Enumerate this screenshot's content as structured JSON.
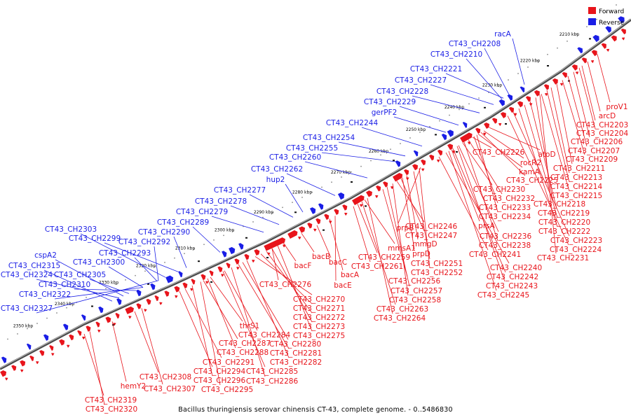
{
  "colors": {
    "forward": "#e8141b",
    "reverse": "#1a1ee6",
    "backbone": "#6e6e6e",
    "tick_dot": "#a0a0a0",
    "text": "#000000"
  },
  "legend": {
    "forward": "Forward",
    "reverse": "Reverse"
  },
  "caption": "Bacillus thuringiensis serovar chinensis CT-43, complete genome. - 0..5486830",
  "ticks": [
    "2210 kbp",
    "2220 kbp",
    "2230 kbp",
    "2240 kbp",
    "2250 kbp",
    "2260 kbp",
    "2270 kbp",
    "2280 kbp",
    "2290 kbp",
    "2300 kbp",
    "2310 kbp",
    "2320 kbp",
    "2330 kbp",
    "2340 kbp",
    "2350 kbp"
  ],
  "reverse_labels": [
    "racA",
    "CT43_CH2208",
    "CT43_CH2210",
    "CT43_CH2221",
    "CT43_CH2227",
    "CT43_CH2228",
    "CT43_CH2229",
    "gerPF2",
    "CT43_CH2244",
    "CT43_CH2254",
    "CT43_CH2255",
    "CT43_CH2260",
    "CT43_CH2262",
    "hup2",
    "CT43_CH2277",
    "CT43_CH2278",
    "CT43_CH2279",
    "CT43_CH2289",
    "CT43_CH2290",
    "CT43_CH2292",
    "CT43_CH2303",
    "CT43_CH2299",
    "CT43_CH2293",
    "CT43_CH2300",
    "cspA2",
    "CT43_CH2315",
    "CT43_CH2324",
    "CT43_CH2305",
    "CT43_CH2310",
    "CT43_CH2322",
    "CT43_CH2327"
  ],
  "forward_labels": [
    "proV1",
    "arcD",
    "CT43_CH2203",
    "CT43_CH2204",
    "CT43_CH2206",
    "CT43_CH2207",
    "CT43_CH2209",
    "CT43_CH2211",
    "CT43_CH2213",
    "CT43_CH2214",
    "CT43_CH2215",
    "CT43_CH2218",
    "CT43_CH2219",
    "CT43_CH2220",
    "CT43_CH2222",
    "CT43_CH2223",
    "CT43_CH2224",
    "CT43_CH2226",
    "atoD",
    "rocR2",
    "kamA",
    "CT43_CH2225",
    "CT43_CH2230",
    "CT43_CH2232",
    "CT43_CH2233",
    "CT43_CH2234",
    "prsA",
    "CT43_CH2236",
    "CT43_CH2238",
    "CT43_CH2231",
    "CT43_CH2241",
    "CT43_CH2240",
    "CT43_CH2242",
    "CT43_CH2243",
    "CT43_CH2245",
    "CT43_CH2246",
    "CT43_CH2247",
    "prpB",
    "mmsA1",
    "mmgD",
    "prpD",
    "CT43_CH2259",
    "CT43_CH2251",
    "CT43_CH2261",
    "CT43_CH2252",
    "bacB",
    "bacC",
    "bacA",
    "bacE",
    "bacF",
    "CT43_CH2256",
    "CT43_CH2257",
    "CT43_CH2258",
    "CT43_CH2263",
    "CT43_CH2264",
    "CT43_CH2276",
    "CT43_CH2270",
    "CT43_CH2271",
    "CT43_CH2272",
    "CT43_CH2273",
    "CT43_CH2275",
    "thrS1",
    "CT43_CH2284",
    "CT43_CH2287",
    "CT43_CH2280",
    "CT43_CH2288",
    "CT43_CH2281",
    "CT43_CH2282",
    "CT43_CH2291",
    "CT43_CH2285",
    "CT43_CH2294",
    "CT43_CH2286",
    "CT43_CH2296",
    "CT43_CH2308",
    "CT43_CH2295",
    "CT43_CH2307",
    "hemY2",
    "CT43_CH2319",
    "CT43_CH2320"
  ]
}
